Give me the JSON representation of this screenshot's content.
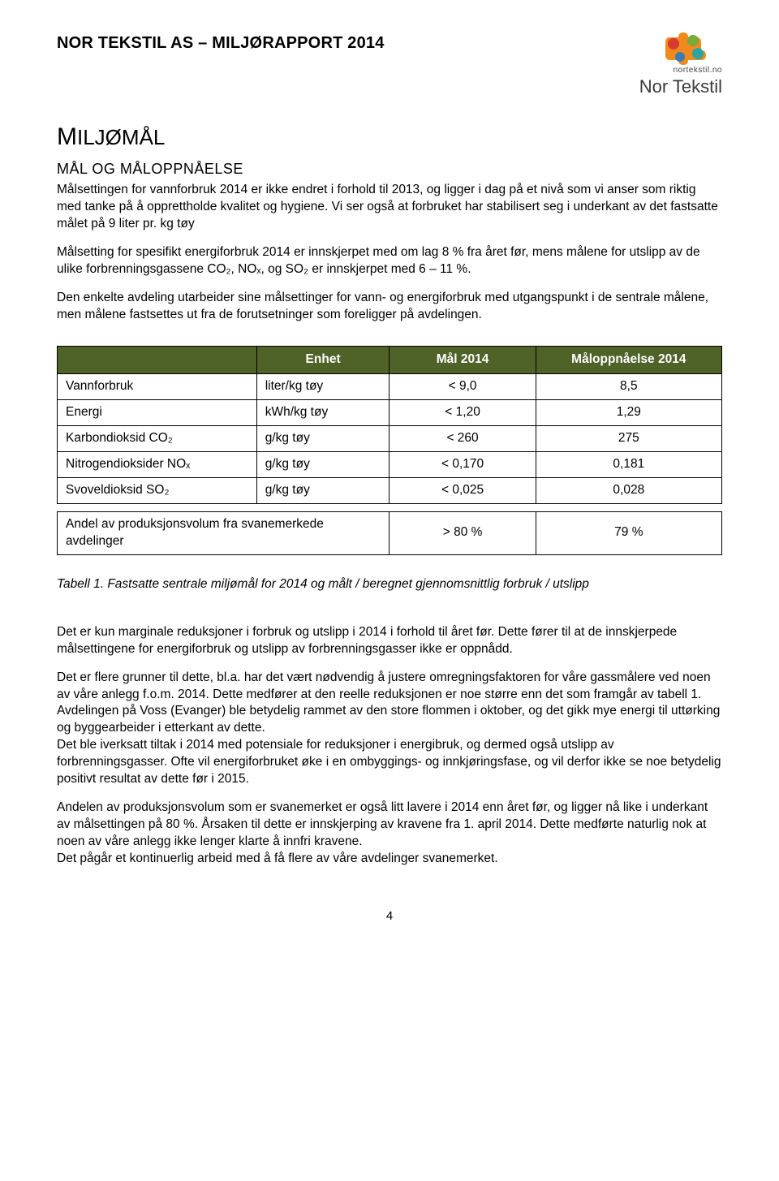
{
  "header": {
    "doc_title": "NOR TEKSTIL AS – MILJØRAPPORT 2014",
    "logo_url": "nortekstil.no",
    "logo_brand": "Nor Tekstil",
    "logo_colors": {
      "orange": "#f08a1d",
      "red": "#d83a2e",
      "green": "#7aa93c",
      "teal": "#2da4a0",
      "blue": "#3a7ab5"
    }
  },
  "section": {
    "h1": "MILJØMÅL",
    "h2": "MÅL OG MÅLOPPNÅELSE",
    "p1": "Målsettingen for vannforbruk 2014 er ikke endret i forhold til 2013, og ligger i dag på et nivå som vi anser som riktig med tanke på å opprettholde kvalitet og hygiene. Vi ser også at forbruket har stabilisert seg i underkant av det fastsatte målet på 9 liter pr. kg tøy",
    "p2": "Målsetting for spesifikt energiforbruk 2014 er innskjerpet med om lag 8 % fra året før, mens målene for utslipp av de ulike forbrenningsgassene CO₂, NOₓ, og SO₂ er innskjerpet med 6 – 11 %.",
    "p3": "Den enkelte avdeling utarbeider sine målsettinger for vann- og energiforbruk med utgangspunkt i de sentrale målene, men målene fastsettes ut fra de forutsetninger som foreligger på avdelingen."
  },
  "table": {
    "header_bg": "#4f6228",
    "header_fg": "#ffffff",
    "columns": [
      "",
      "Enhet",
      "Mål 2014",
      "Måloppnåelse 2014"
    ],
    "rows": [
      {
        "label": "Vannforbruk",
        "unit": "liter/kg tøy",
        "target": "< 9,0",
        "result": "8,5"
      },
      {
        "label": "Energi",
        "unit": "kWh/kg tøy",
        "target": "< 1,20",
        "result": "1,29"
      },
      {
        "label": "Karbondioksid CO₂",
        "unit": "g/kg tøy",
        "target": "< 260",
        "result": "275"
      },
      {
        "label": "Nitrogendioksider NOₓ",
        "unit": "g/kg tøy",
        "target": "< 0,170",
        "result": "0,181"
      },
      {
        "label": "Svoveldioksid SO₂",
        "unit": "g/kg tøy",
        "target": "< 0,025",
        "result": "0,028"
      }
    ],
    "merged_row": {
      "label": "Andel av produksjonsvolum fra svanemerkede avdelinger",
      "target": "> 80 %",
      "result": "79 %"
    },
    "caption": "Tabell 1. Fastsatte sentrale miljømål for 2014 og målt / beregnet gjennomsnittlig forbruk / utslipp"
  },
  "lower": {
    "p1": "Det er kun marginale reduksjoner i forbruk og utslipp i 2014 i forhold til året før. Dette fører til at de innskjerpede målsettingene for energiforbruk og utslipp av forbrenningsgasser ikke er oppnådd.",
    "p2": "Det er flere grunner til dette, bl.a. har det vært nødvendig å justere omregningsfaktoren for våre gassmålere ved noen av våre anlegg f.o.m. 2014. Dette medfører at den reelle reduksjonen er noe større enn det som framgår av tabell 1.",
    "p3": "Avdelingen på Voss (Evanger) ble betydelig rammet av den store flommen i oktober, og det gikk mye energi til uttørking og byggearbeider i etterkant av dette.",
    "p4": "Det ble iverksatt tiltak i 2014 med potensiale for reduksjoner i energibruk, og dermed også utslipp av forbrenningsgasser. Ofte vil energiforbruket øke i en ombyggings- og innkjøringsfase, og vil derfor ikke se noe betydelig positivt resultat av dette før i 2015.",
    "p5": "Andelen av produksjonsvolum som er svanemerket er også litt lavere i 2014 enn året før, og ligger nå like i underkant av målsettingen på 80 %. Årsaken til dette er innskjerping av kravene fra 1. april 2014. Dette medførte naturlig nok at noen av våre anlegg ikke lenger klarte å innfri kravene.",
    "p6": "Det pågår et kontinuerlig arbeid med å få flere av våre avdelinger svanemerket."
  },
  "page_number": "4"
}
